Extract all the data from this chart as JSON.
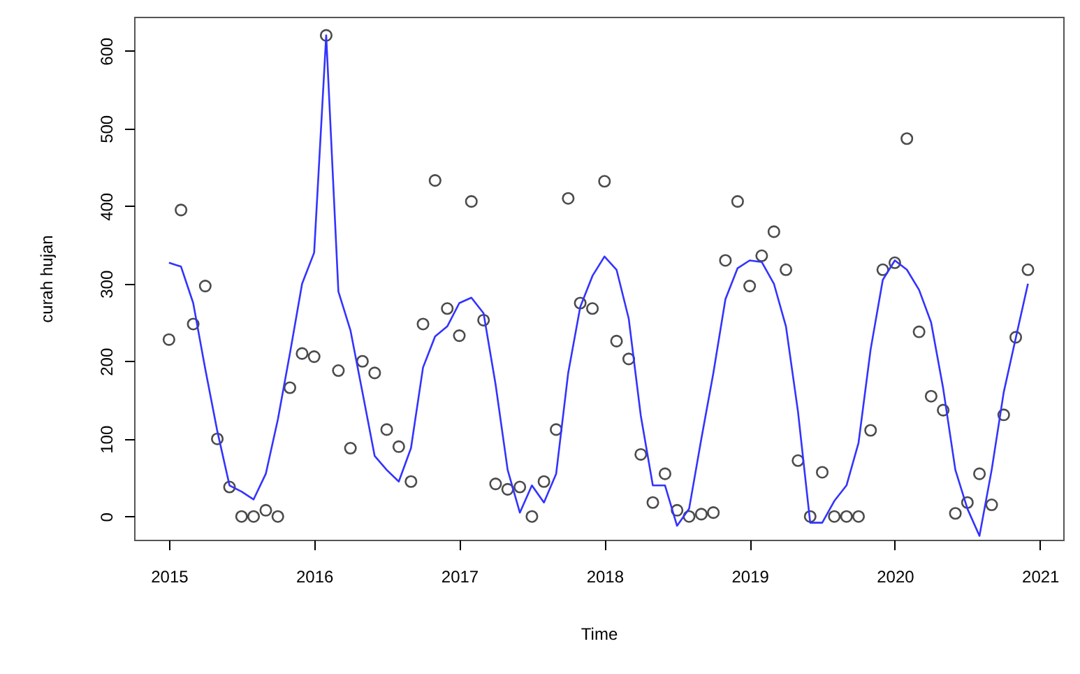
{
  "chart_data": {
    "type": "line",
    "xlabel": "Time",
    "ylabel": "curah hujan",
    "x": [
      2015,
      2015.083,
      2015.167,
      2015.25,
      2015.333,
      2015.417,
      2015.5,
      2015.583,
      2015.667,
      2015.75,
      2015.833,
      2015.917,
      2016,
      2016.083,
      2016.167,
      2016.25,
      2016.333,
      2016.417,
      2016.5,
      2016.583,
      2016.667,
      2016.75,
      2016.833,
      2016.917,
      2017,
      2017.083,
      2017.167,
      2017.25,
      2017.333,
      2017.417,
      2017.5,
      2017.583,
      2017.667,
      2017.75,
      2017.833,
      2017.917,
      2018,
      2018.083,
      2018.167,
      2018.25,
      2018.333,
      2018.417,
      2018.5,
      2018.583,
      2018.667,
      2018.75,
      2018.833,
      2018.917,
      2019,
      2019.083,
      2019.167,
      2019.25,
      2019.333,
      2019.417,
      2019.5,
      2019.583,
      2019.667,
      2019.75,
      2019.833,
      2019.917,
      2020,
      2020.083,
      2020.167,
      2020.25,
      2020.333,
      2020.417,
      2020.5,
      2020.583,
      2020.667,
      2020.75,
      2020.833,
      2020.917
    ],
    "series": [
      {
        "type": "scatter",
        "marker": "circle",
        "color": "#000000",
        "values": [
          228,
          395,
          248,
          297,
          100,
          38,
          0,
          0,
          8,
          0,
          166,
          210,
          206,
          620,
          188,
          88,
          200,
          185,
          112,
          90,
          45,
          248,
          433,
          268,
          233,
          406,
          253,
          42,
          35,
          38,
          0,
          45,
          112,
          410,
          275,
          268,
          432,
          226,
          203,
          80,
          18,
          55,
          8,
          0,
          3,
          5,
          330,
          406,
          297,
          336,
          367,
          318,
          72,
          0,
          57,
          0,
          0,
          0,
          111,
          318,
          327,
          487,
          238,
          155,
          137,
          4,
          18,
          55,
          15,
          131,
          231,
          318
        ]
      },
      {
        "color": "#3333ff",
        "line_style": "solid",
        "values": [
          327,
          322,
          275,
          190,
          110,
          40,
          32,
          22,
          55,
          125,
          210,
          300,
          340,
          620,
          290,
          240,
          160,
          78,
          60,
          45,
          88,
          192,
          232,
          245,
          275,
          282,
          262,
          170,
          60,
          5,
          40,
          18,
          55,
          185,
          270,
          310,
          335,
          318,
          255,
          130,
          40,
          40,
          -12,
          10,
          100,
          185,
          280,
          320,
          330,
          328,
          300,
          245,
          135,
          -8,
          -8,
          20,
          40,
          95,
          215,
          305,
          330,
          318,
          292,
          250,
          165,
          60,
          10,
          -25,
          60,
          160,
          230,
          300
        ]
      }
    ],
    "xlim": [
      2014.76,
      2021.16
    ],
    "xticks": [
      2015,
      2016,
      2017,
      2018,
      2019,
      2020,
      2021
    ],
    "ylim": [
      -30,
      644
    ],
    "yticks": [
      0,
      100,
      200,
      300,
      400,
      500,
      600
    ],
    "grid": false
  }
}
